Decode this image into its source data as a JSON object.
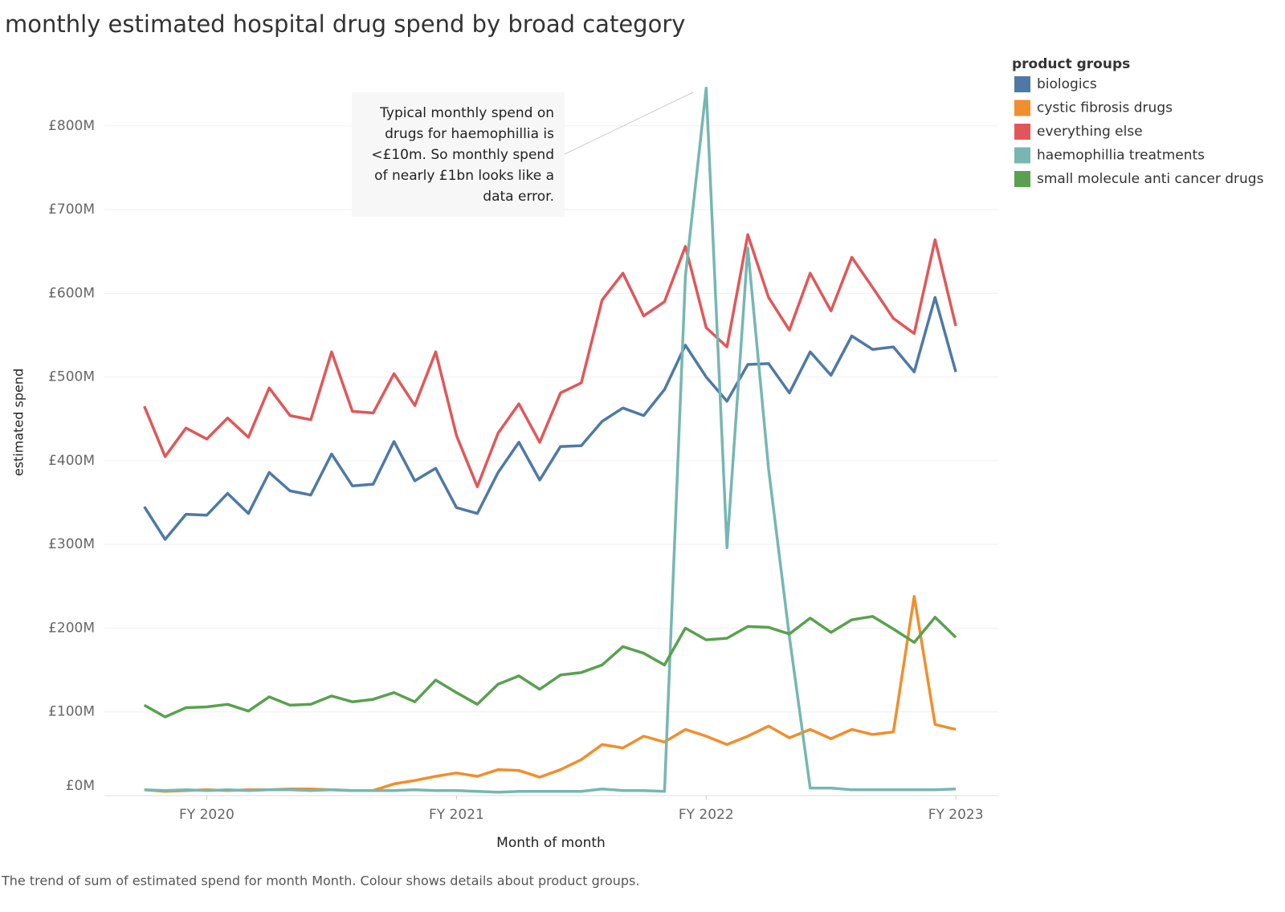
{
  "chart_data": {
    "type": "line",
    "title": "monthly estimated hospital drug spend by broad category",
    "x_label": "Month of month",
    "y_label": "estimated spend",
    "caption": "The trend of sum of estimated spend for month Month. Colour shows details about product groups.",
    "legend_title": "product groups",
    "legend_position": "right",
    "grid": true,
    "annotation": [
      "Typical monthly spend on",
      "drugs for haemophillia is",
      "<£10m. So monthly spend",
      "of nearly £1bn looks like a",
      "data error."
    ],
    "x": [
      2019.75,
      2019.8333,
      2019.9167,
      2020,
      2020.0833,
      2020.1667,
      2020.25,
      2020.3333,
      2020.4167,
      2020.5,
      2020.5833,
      2020.6667,
      2020.75,
      2020.8333,
      2020.9167,
      2021,
      2021.0833,
      2021.1667,
      2021.25,
      2021.3333,
      2021.4167,
      2021.5,
      2021.5833,
      2021.6667,
      2021.75,
      2021.8333,
      2021.9167,
      2022,
      2022.0833,
      2022.1667,
      2022.25,
      2022.3333,
      2022.4167,
      2022.5,
      2022.5833,
      2022.6667,
      2022.75,
      2022.8333,
      2022.9167,
      2023
    ],
    "xlim": [
      2019.59,
      2023.17
    ],
    "xticks": [
      {
        "value": 2020,
        "label": "FY 2020"
      },
      {
        "value": 2021,
        "label": "FY 2021"
      },
      {
        "value": 2022,
        "label": "FY 2022"
      },
      {
        "value": 2023,
        "label": "FY 2023"
      }
    ],
    "ylim": [
      0,
      888
    ],
    "yticks": [
      {
        "value": 0,
        "label": "£0M"
      },
      {
        "value": 100,
        "label": "£100M"
      },
      {
        "value": 200,
        "label": "£200M"
      },
      {
        "value": 300,
        "label": "£300M"
      },
      {
        "value": 400,
        "label": "£400M"
      },
      {
        "value": 500,
        "label": "£500M"
      },
      {
        "value": 600,
        "label": "£600M"
      },
      {
        "value": 700,
        "label": "£700M"
      },
      {
        "value": 800,
        "label": "£800M"
      }
    ],
    "series": [
      {
        "name": "biologics",
        "color": "#4e79a7",
        "values": [
          345,
          306,
          336,
          335,
          361,
          337,
          386,
          364,
          359,
          408,
          370,
          372,
          423,
          376,
          391,
          344,
          337,
          386,
          422,
          377,
          417,
          418,
          447,
          463,
          454,
          485,
          538,
          500,
          471,
          515,
          516,
          481,
          530,
          502,
          549,
          533,
          536,
          506,
          595,
          506
        ]
      },
      {
        "name": "cystic fibrosis drugs",
        "color": "#f28e2b",
        "values": [
          7,
          5,
          6,
          7,
          6,
          7,
          7,
          8,
          8,
          7,
          6,
          6,
          14,
          18,
          23,
          27,
          23,
          31,
          30,
          22,
          31,
          43,
          61,
          57,
          71,
          64,
          79,
          71,
          61,
          71,
          83,
          69,
          79,
          68,
          79,
          73,
          76,
          238,
          85,
          79
        ]
      },
      {
        "name": "everything else",
        "color": "#e15759",
        "values": [
          465,
          405,
          439,
          426,
          451,
          428,
          487,
          454,
          449,
          530,
          459,
          457,
          504,
          466,
          530,
          430,
          369,
          433,
          468,
          422,
          481,
          493,
          592,
          624,
          573,
          590,
          656,
          559,
          536,
          670,
          595,
          556,
          624,
          579,
          643,
          607,
          570,
          552,
          664,
          561
        ]
      },
      {
        "name": "haemophillia treatments",
        "color": "#76b7b2",
        "values": [
          7,
          6,
          7,
          6,
          7,
          6,
          7,
          7,
          6,
          7,
          6,
          6,
          6,
          7,
          6,
          6,
          5,
          4,
          5,
          5,
          5,
          5,
          8,
          6,
          6,
          5,
          620,
          845,
          296,
          654,
          390,
          190,
          9,
          9,
          7,
          7,
          7,
          7,
          7,
          8
        ]
      },
      {
        "name": "small molecule anti cancer drugs",
        "color": "#59a14f",
        "values": [
          108,
          94,
          105,
          106,
          109,
          101,
          118,
          108,
          109,
          119,
          112,
          115,
          123,
          112,
          138,
          123,
          109,
          133,
          143,
          127,
          144,
          147,
          156,
          178,
          170,
          156,
          200,
          186,
          188,
          202,
          201,
          193,
          212,
          195,
          210,
          214,
          199,
          183,
          213,
          189
        ]
      }
    ]
  }
}
